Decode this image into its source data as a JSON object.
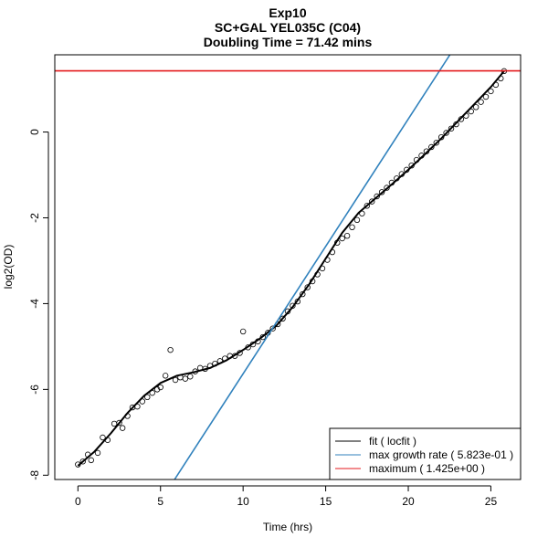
{
  "chart_data": {
    "type": "scatter",
    "title": "Exp10",
    "subtitle": "SC+GAL YEL035C (C04)",
    "subtitle2": "Doubling Time = 71.42 mins",
    "xlabel": "Time (hrs)",
    "ylabel": "log2(OD)",
    "xlim": [
      -1.4,
      26.8
    ],
    "ylim": [
      -8.1,
      1.8
    ],
    "x_ticks": [
      0,
      5,
      10,
      15,
      20,
      25
    ],
    "y_ticks": [
      -8,
      -6,
      -4,
      -2,
      0
    ],
    "grid": false,
    "legend_position": "bottom-right",
    "series": [
      {
        "kind": "points",
        "color": "#000000",
        "points": [
          [
            0.0,
            -7.75
          ],
          [
            0.3,
            -7.68
          ],
          [
            0.6,
            -7.52
          ],
          [
            0.8,
            -7.65
          ],
          [
            1.2,
            -7.48
          ],
          [
            1.5,
            -7.12
          ],
          [
            1.8,
            -7.18
          ],
          [
            2.2,
            -6.8
          ],
          [
            2.5,
            -6.78
          ],
          [
            2.7,
            -6.9
          ],
          [
            3.0,
            -6.62
          ],
          [
            3.3,
            -6.42
          ],
          [
            3.6,
            -6.4
          ],
          [
            3.9,
            -6.28
          ],
          [
            4.2,
            -6.18
          ],
          [
            4.5,
            -6.08
          ],
          [
            4.8,
            -6.0
          ],
          [
            5.0,
            -5.95
          ],
          [
            5.3,
            -5.68
          ],
          [
            5.6,
            -5.08
          ],
          [
            5.9,
            -5.78
          ],
          [
            6.2,
            -5.72
          ],
          [
            6.5,
            -5.75
          ],
          [
            6.8,
            -5.7
          ],
          [
            7.1,
            -5.58
          ],
          [
            7.4,
            -5.5
          ],
          [
            7.7,
            -5.52
          ],
          [
            8.0,
            -5.45
          ],
          [
            8.3,
            -5.4
          ],
          [
            8.6,
            -5.34
          ],
          [
            8.9,
            -5.28
          ],
          [
            9.2,
            -5.22
          ],
          [
            9.5,
            -5.22
          ],
          [
            9.8,
            -5.15
          ],
          [
            10.0,
            -4.65
          ],
          [
            10.3,
            -5.02
          ],
          [
            10.6,
            -4.95
          ],
          [
            10.9,
            -4.88
          ],
          [
            11.2,
            -4.78
          ],
          [
            11.5,
            -4.68
          ],
          [
            11.8,
            -4.58
          ],
          [
            12.1,
            -4.48
          ],
          [
            12.4,
            -4.35
          ],
          [
            12.7,
            -4.18
          ],
          [
            13.0,
            -4.05
          ],
          [
            13.3,
            -3.95
          ],
          [
            13.6,
            -3.78
          ],
          [
            13.9,
            -3.62
          ],
          [
            14.2,
            -3.48
          ],
          [
            14.5,
            -3.32
          ],
          [
            14.8,
            -3.18
          ],
          [
            15.1,
            -2.98
          ],
          [
            15.4,
            -2.8
          ],
          [
            15.7,
            -2.58
          ],
          [
            16.0,
            -2.48
          ],
          [
            16.3,
            -2.42
          ],
          [
            16.6,
            -2.22
          ],
          [
            16.9,
            -2.05
          ],
          [
            17.2,
            -1.9
          ],
          [
            17.5,
            -1.72
          ],
          [
            17.8,
            -1.62
          ],
          [
            18.1,
            -1.5
          ],
          [
            18.4,
            -1.4
          ],
          [
            18.7,
            -1.3
          ],
          [
            19.0,
            -1.18
          ],
          [
            19.3,
            -1.08
          ],
          [
            19.6,
            -0.98
          ],
          [
            19.9,
            -0.88
          ],
          [
            20.2,
            -0.78
          ],
          [
            20.5,
            -0.65
          ],
          [
            20.8,
            -0.55
          ],
          [
            21.1,
            -0.45
          ],
          [
            21.4,
            -0.35
          ],
          [
            21.7,
            -0.25
          ],
          [
            22.0,
            -0.12
          ],
          [
            22.3,
            -0.02
          ],
          [
            22.6,
            0.08
          ],
          [
            22.9,
            0.18
          ],
          [
            23.2,
            0.3
          ],
          [
            23.5,
            0.38
          ],
          [
            23.8,
            0.48
          ],
          [
            24.1,
            0.58
          ],
          [
            24.4,
            0.7
          ],
          [
            24.7,
            0.82
          ],
          [
            25.0,
            0.95
          ],
          [
            25.3,
            1.1
          ],
          [
            25.6,
            1.25
          ],
          [
            25.8,
            1.42
          ]
        ]
      },
      {
        "kind": "line",
        "color": "#000000",
        "points": [
          [
            0.0,
            -7.78
          ],
          [
            1.0,
            -7.45
          ],
          [
            2.0,
            -7.02
          ],
          [
            3.0,
            -6.55
          ],
          [
            4.0,
            -6.15
          ],
          [
            5.0,
            -5.85
          ],
          [
            6.0,
            -5.68
          ],
          [
            7.0,
            -5.6
          ],
          [
            8.0,
            -5.5
          ],
          [
            9.0,
            -5.32
          ],
          [
            10.0,
            -5.08
          ],
          [
            11.0,
            -4.82
          ],
          [
            12.0,
            -4.52
          ],
          [
            13.0,
            -4.08
          ],
          [
            14.0,
            -3.55
          ],
          [
            15.0,
            -2.95
          ],
          [
            16.0,
            -2.35
          ],
          [
            17.0,
            -1.88
          ],
          [
            18.0,
            -1.55
          ],
          [
            19.0,
            -1.22
          ],
          [
            20.0,
            -0.88
          ],
          [
            21.0,
            -0.52
          ],
          [
            22.0,
            -0.15
          ],
          [
            23.0,
            0.25
          ],
          [
            24.0,
            0.65
          ],
          [
            25.0,
            1.05
          ],
          [
            25.8,
            1.42
          ]
        ]
      },
      {
        "kind": "line",
        "color": "#3182bd",
        "points": [
          [
            5.85,
            -8.1
          ],
          [
            22.52,
            1.8
          ]
        ]
      },
      {
        "kind": "line",
        "color": "#e41a1c",
        "points": [
          [
            -1.4,
            1.425
          ],
          [
            26.8,
            1.425
          ]
        ]
      }
    ],
    "legend": [
      {
        "label": "fit ( locfit )",
        "color": "#000000"
      },
      {
        "label": "max growth rate ( 5.823e-01 )",
        "color": "#3182bd"
      },
      {
        "label": "maximum ( 1.425e+00 )",
        "color": "#e41a1c"
      }
    ]
  }
}
